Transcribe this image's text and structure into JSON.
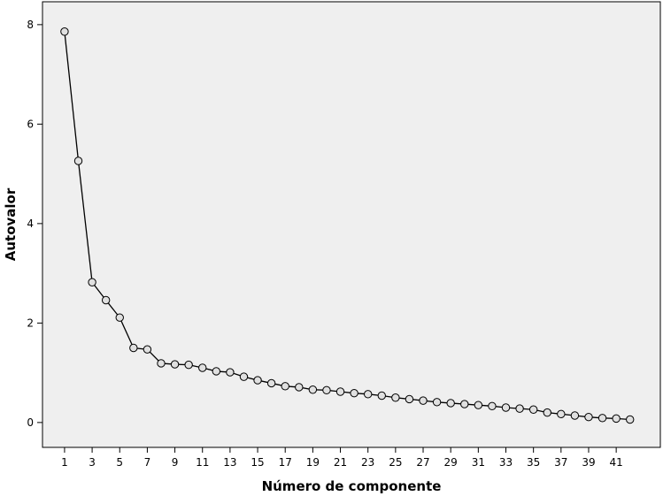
{
  "chart_data": {
    "type": "line",
    "title": "",
    "xlabel": "Número de componente",
    "ylabel": "Autovalor",
    "x": [
      1,
      2,
      3,
      4,
      5,
      6,
      7,
      8,
      9,
      10,
      11,
      12,
      13,
      14,
      15,
      16,
      17,
      18,
      19,
      20,
      21,
      22,
      23,
      24,
      25,
      26,
      27,
      28,
      29,
      30,
      31,
      32,
      33,
      34,
      35,
      36,
      37,
      38,
      39,
      40,
      41,
      42
    ],
    "xticks": [
      1,
      3,
      5,
      7,
      9,
      11,
      13,
      15,
      17,
      19,
      21,
      23,
      25,
      27,
      29,
      31,
      33,
      35,
      37,
      39,
      41
    ],
    "yticks": [
      0,
      2,
      4,
      6,
      8
    ],
    "xlim": [
      -0.6,
      44.2
    ],
    "ylim": [
      -0.5,
      8.46
    ],
    "grid": false,
    "series": [
      {
        "values": [
          7.86,
          5.26,
          2.82,
          2.46,
          2.11,
          1.5,
          1.47,
          1.19,
          1.17,
          1.16,
          1.1,
          1.03,
          1.01,
          0.92,
          0.85,
          0.79,
          0.73,
          0.71,
          0.66,
          0.65,
          0.62,
          0.59,
          0.57,
          0.54,
          0.5,
          0.47,
          0.44,
          0.41,
          0.39,
          0.37,
          0.35,
          0.33,
          0.3,
          0.28,
          0.26,
          0.2,
          0.17,
          0.14,
          0.11,
          0.09,
          0.08,
          0.06
        ]
      }
    ],
    "colors": {
      "plot_bg": "#efefef",
      "line": "#000000",
      "marker_fill": "#e0e0e0"
    }
  }
}
